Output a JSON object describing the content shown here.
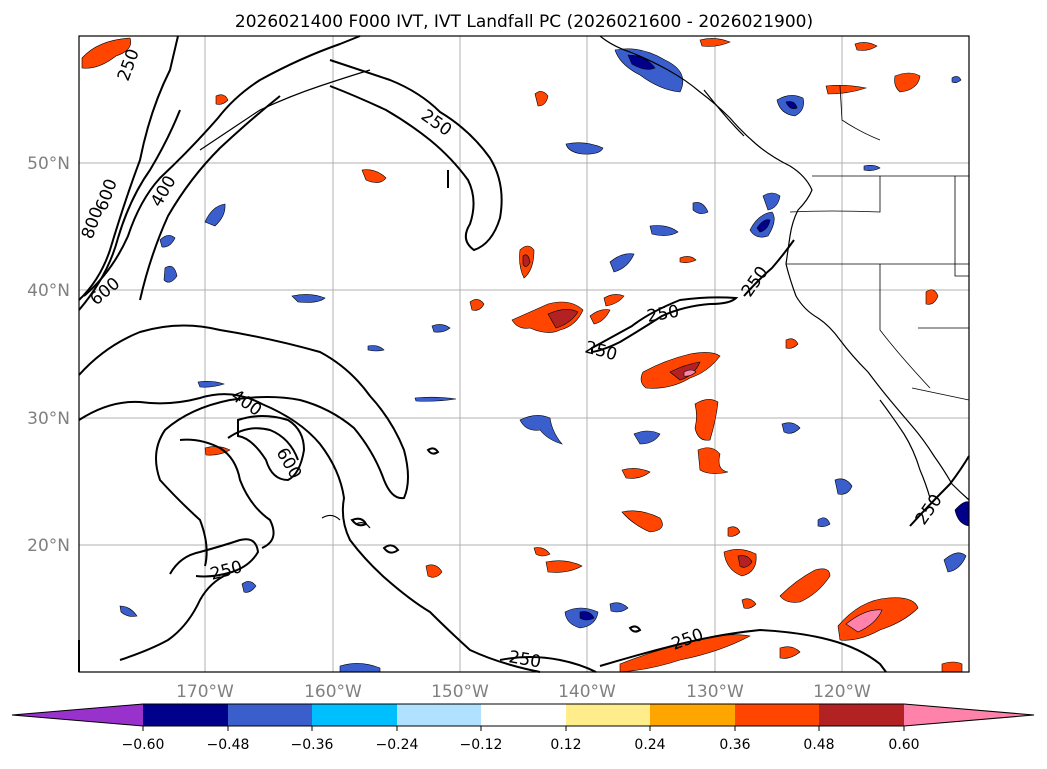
{
  "title": "2026021400 F000 IVT, IVT Landfall PC (2026021600 - 2026021900)",
  "lat_labels": [
    "50°N",
    "40°N",
    "30°N",
    "20°N"
  ],
  "lon_labels": [
    "170°W",
    "160°W",
    "150°W",
    "140°W",
    "130°W",
    "120°W"
  ],
  "colorbar": {
    "tick_labels": [
      "−0.60",
      "−0.48",
      "−0.36",
      "−0.24",
      "−0.12",
      "0.12",
      "0.24",
      "0.36",
      "0.48",
      "0.60"
    ],
    "colors": [
      "#9932cc",
      "#00008b",
      "#3a5fcd",
      "#00bfff",
      "#b0e2ff",
      "#ffffff",
      "#ffec8b",
      "#ffa500",
      "#ff4500",
      "#b22222",
      "#ff82ab"
    ]
  },
  "contour_labels": {
    "c1": "250",
    "c2": "250",
    "c3": "800",
    "c4": "600",
    "c5": "400",
    "c6": "600",
    "c7": "400",
    "c8": "600",
    "c9": "250",
    "c10": "250",
    "c11": "250",
    "c12": "250",
    "c13": "250",
    "c14": "250",
    "c15": "250"
  },
  "legend_colors": {
    "neg_purple": "#9932cc",
    "neg_navy": "#00008b",
    "neg_blue": "#3a5fcd",
    "neg_sky": "#00bfff",
    "neg_light": "#b0e2ff",
    "pos_yellow": "#ffec8b",
    "pos_orange": "#ffa500",
    "pos_red": "#ff4500",
    "pos_dark": "#b22222",
    "pos_pink": "#ff82ab"
  }
}
